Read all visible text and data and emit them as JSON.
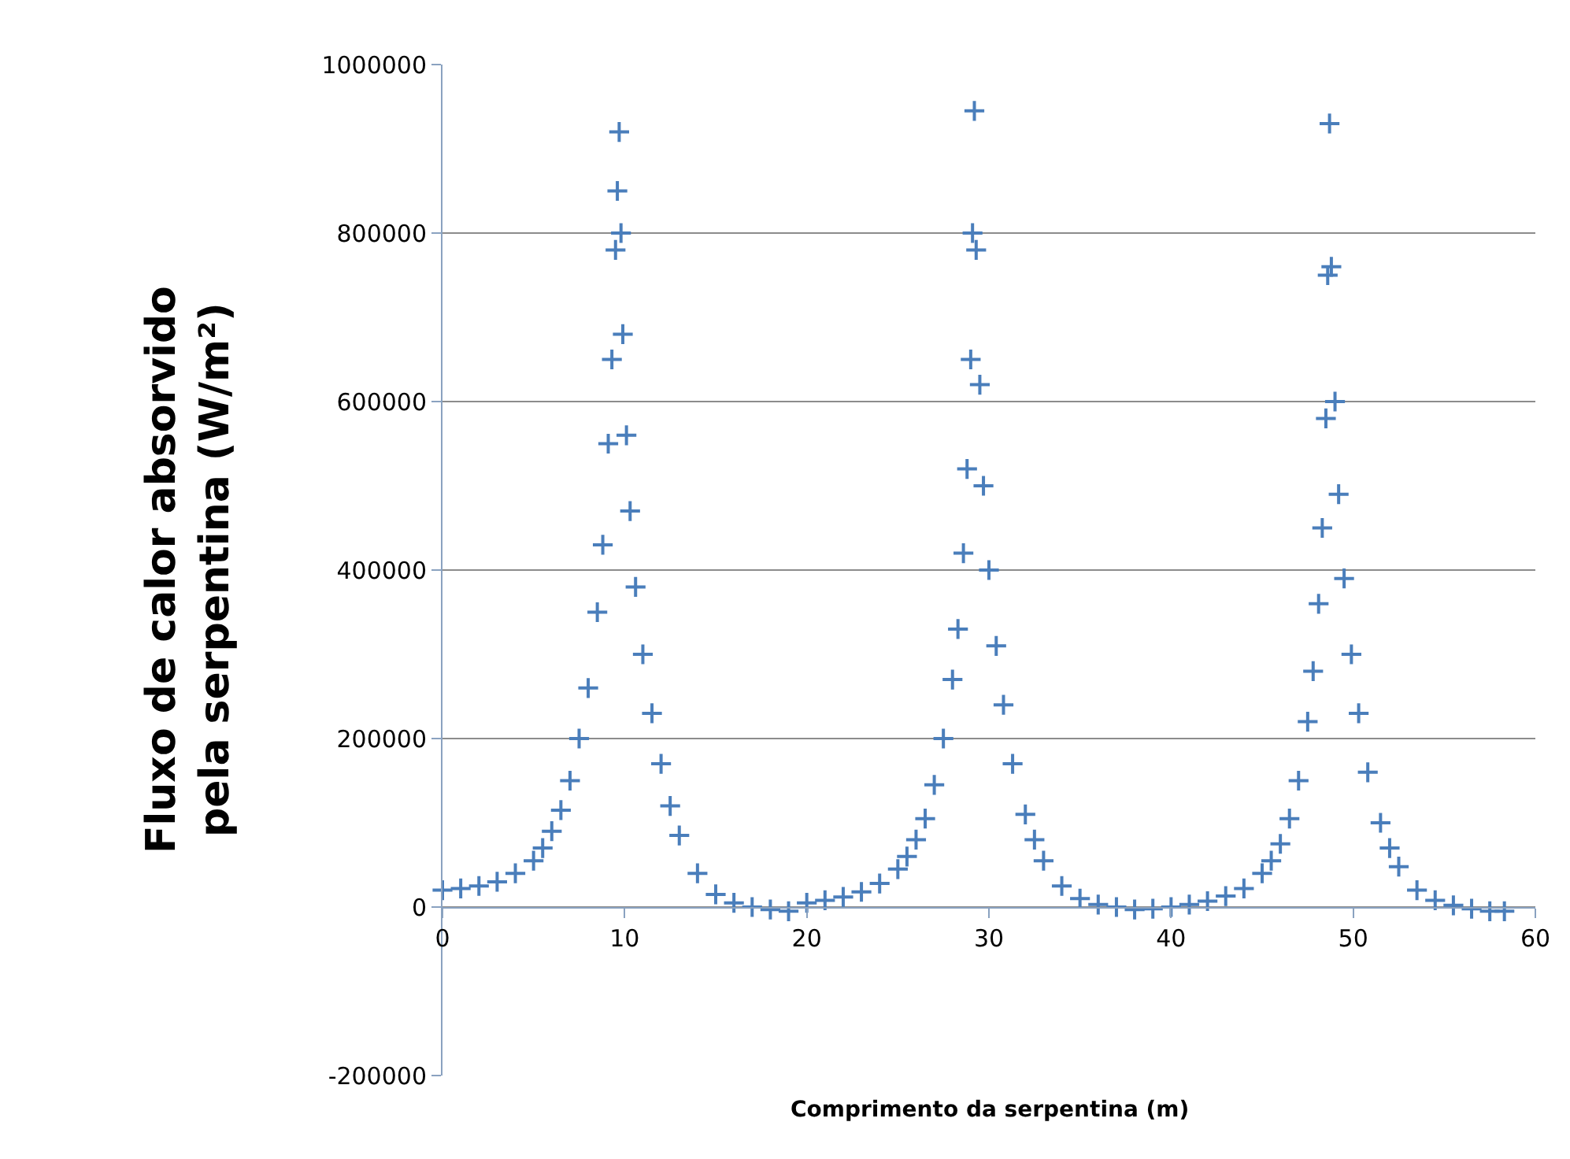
{
  "chart_data": {
    "type": "scatter",
    "xlabel": "Comprimento da serpentina (m)",
    "ylabel": "Fluxo de calor absorvido pela serpentina (W/m²)",
    "xlim": [
      0,
      60
    ],
    "xticks": [
      0,
      10,
      20,
      30,
      40,
      50,
      60
    ],
    "ylim": [
      -200000,
      1000000
    ],
    "yticks": [
      -200000,
      0,
      200000,
      400000,
      600000,
      800000,
      1000000
    ],
    "grid": "y",
    "marker": "cross",
    "series": [
      {
        "color": "#4a7ebb",
        "x": [
          0,
          1,
          2,
          3,
          4,
          5,
          5.5,
          6,
          6.5,
          7,
          7.5,
          8,
          8.5,
          8.8,
          9.1,
          9.3,
          9.5,
          9.6,
          9.7,
          9.8,
          9.9,
          10.1,
          10.3,
          10.6,
          11,
          11.5,
          12,
          12.5,
          13,
          14,
          15,
          16,
          17,
          18,
          19,
          20,
          21,
          22,
          23,
          24,
          25,
          25.5,
          26,
          26.5,
          27,
          27.5,
          28,
          28.3,
          28.6,
          28.8,
          29,
          29.1,
          29.2,
          29.3,
          29.5,
          29.7,
          30,
          30.4,
          30.8,
          31.3,
          32,
          32.5,
          33,
          34,
          35,
          36,
          37,
          38,
          39,
          40,
          41,
          42,
          43,
          44,
          45,
          45.5,
          46,
          46.5,
          47,
          47.5,
          47.8,
          48.1,
          48.3,
          48.5,
          48.6,
          48.7,
          48.8,
          49,
          49.2,
          49.5,
          49.9,
          50.3,
          50.8,
          51.5,
          52,
          52.5,
          53.5,
          54.5,
          55.5,
          56.5,
          57.5,
          58.3
        ],
        "values": [
          20000,
          22000,
          25000,
          30000,
          40000,
          55000,
          70000,
          90000,
          115000,
          150000,
          200000,
          260000,
          350000,
          430000,
          550000,
          650000,
          780000,
          850000,
          920000,
          800000,
          680000,
          560000,
          470000,
          380000,
          300000,
          230000,
          170000,
          120000,
          85000,
          40000,
          15000,
          5000,
          0,
          -3000,
          -5000,
          5000,
          8000,
          12000,
          18000,
          28000,
          45000,
          60000,
          80000,
          105000,
          145000,
          200000,
          270000,
          330000,
          420000,
          520000,
          650000,
          800000,
          945000,
          780000,
          620000,
          500000,
          400000,
          310000,
          240000,
          170000,
          110000,
          80000,
          55000,
          25000,
          10000,
          3000,
          0,
          -3000,
          -2000,
          0,
          3000,
          7000,
          13000,
          22000,
          40000,
          55000,
          75000,
          105000,
          150000,
          220000,
          280000,
          360000,
          450000,
          580000,
          750000,
          930000,
          760000,
          600000,
          490000,
          390000,
          300000,
          230000,
          160000,
          100000,
          70000,
          48000,
          20000,
          8000,
          2000,
          -2000,
          -5000,
          -5000
        ]
      }
    ]
  }
}
